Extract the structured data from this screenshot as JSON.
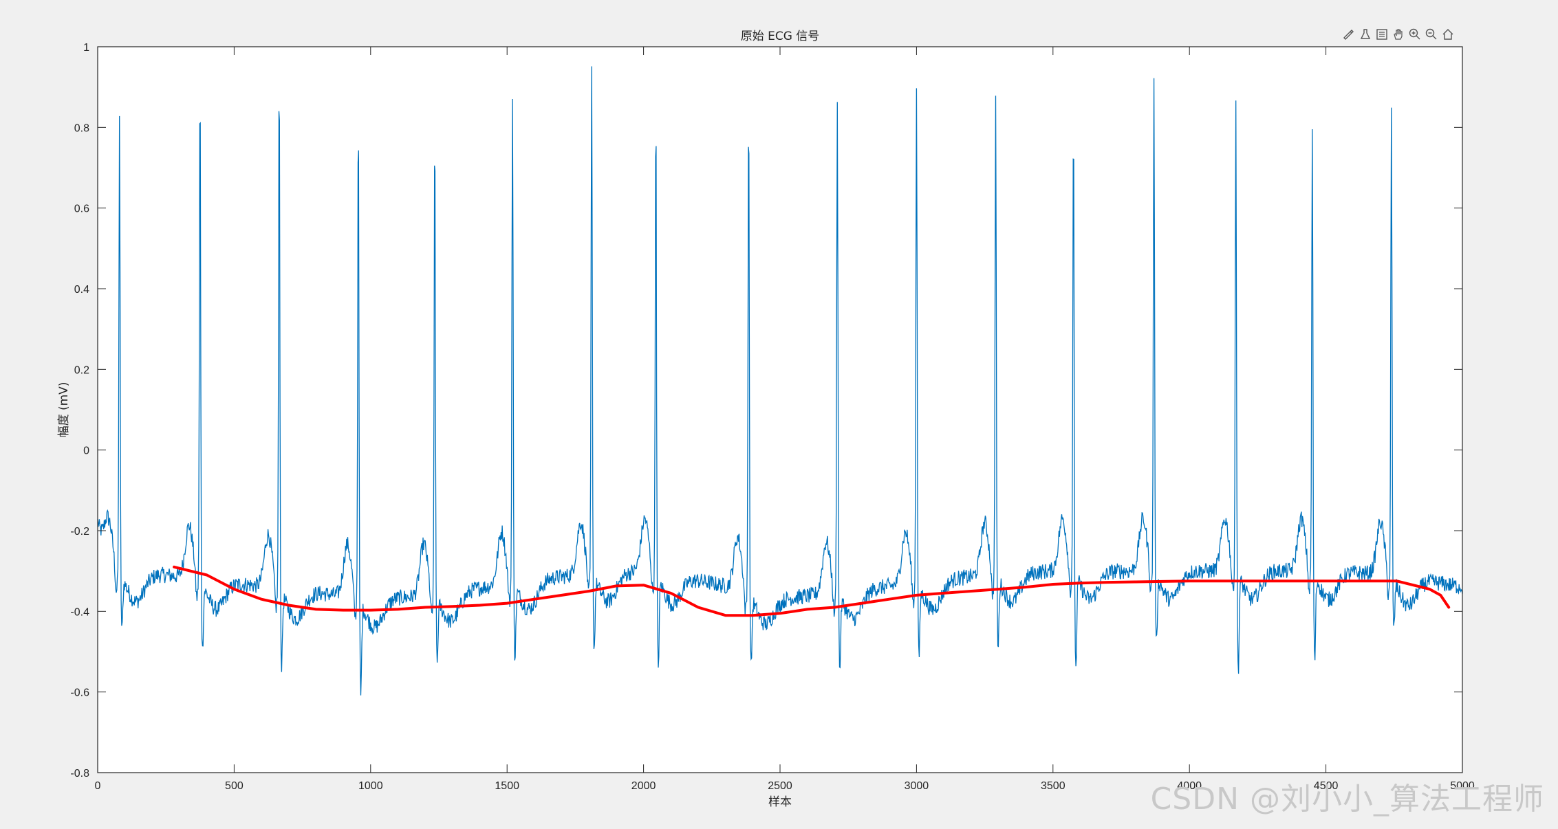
{
  "chart_data": {
    "type": "line",
    "title": "原始 ECG 信号",
    "xlabel": "样本",
    "ylabel": "幅度 (mV)",
    "xlim": [
      0,
      5000
    ],
    "ylim": [
      -0.8,
      1
    ],
    "xticks": [
      0,
      500,
      1000,
      1500,
      2000,
      2500,
      3000,
      3500,
      4000,
      4500,
      5000
    ],
    "yticks": [
      -0.8,
      -0.6,
      -0.4,
      -0.2,
      0,
      0.2,
      0.4,
      0.6,
      0.8,
      1
    ],
    "grid": false,
    "series": [
      {
        "color": "#0072bd",
        "baseline_x": [
          0,
          250,
          500,
          750,
          1000,
          1250,
          1500,
          1750,
          2000,
          2250,
          2500,
          2750,
          3000,
          3250,
          3500,
          3750,
          4000,
          4250,
          4500,
          4750,
          5000
        ],
        "baseline_y": [
          -0.3,
          -0.31,
          -0.33,
          -0.35,
          -0.37,
          -0.36,
          -0.33,
          -0.31,
          -0.3,
          -0.33,
          -0.37,
          -0.35,
          -0.33,
          -0.31,
          -0.3,
          -0.3,
          -0.3,
          -0.3,
          -0.3,
          -0.31,
          -0.34
        ],
        "r_peaks_x": [
          80,
          375,
          665,
          955,
          1235,
          1520,
          1810,
          2045,
          2385,
          2710,
          3000,
          3290,
          3575,
          3870,
          4170,
          4450,
          4740
        ],
        "r_peaks_y": [
          0.84,
          0.94,
          0.96,
          0.86,
          0.82,
          0.88,
          0.95,
          0.87,
          0.88,
          0.89,
          0.92,
          0.87,
          0.83,
          0.93,
          0.89,
          0.8,
          0.85
        ],
        "s_troughs_y": [
          -0.48,
          -0.53,
          -0.57,
          -0.64,
          -0.56,
          -0.55,
          -0.53,
          -0.57,
          -0.57,
          -0.58,
          -0.55,
          -0.53,
          -0.58,
          -0.52,
          -0.58,
          -0.56,
          -0.48
        ]
      },
      {
        "color": "#ff0000",
        "x": [
          280,
          400,
          500,
          600,
          700,
          800,
          900,
          1000,
          1100,
          1200,
          1300,
          1400,
          1500,
          1600,
          1700,
          1800,
          1900,
          2000,
          2100,
          2200,
          2300,
          2400,
          2500,
          2600,
          2700,
          2800,
          2900,
          3000,
          3100,
          3200,
          3300,
          3400,
          3500,
          3600,
          3700,
          3800,
          3900,
          4000,
          4100,
          4200,
          4300,
          4400,
          4500,
          4600,
          4700,
          4760,
          4820,
          4880,
          4920,
          4950
        ],
        "y": [
          -0.29,
          -0.31,
          -0.345,
          -0.37,
          -0.385,
          -0.395,
          -0.397,
          -0.397,
          -0.395,
          -0.39,
          -0.388,
          -0.385,
          -0.38,
          -0.37,
          -0.36,
          -0.35,
          -0.337,
          -0.335,
          -0.355,
          -0.39,
          -0.41,
          -0.41,
          -0.405,
          -0.395,
          -0.39,
          -0.38,
          -0.37,
          -0.36,
          -0.355,
          -0.35,
          -0.345,
          -0.34,
          -0.333,
          -0.33,
          -0.328,
          -0.327,
          -0.326,
          -0.325,
          -0.325,
          -0.325,
          -0.325,
          -0.325,
          -0.325,
          -0.325,
          -0.325,
          -0.325,
          -0.335,
          -0.345,
          -0.36,
          -0.39
        ]
      }
    ]
  },
  "toolbar": [
    "brush-icon",
    "data-tip-icon",
    "legend-icon",
    "pan-icon",
    "zoom-in-icon",
    "zoom-out-icon",
    "home-icon"
  ],
  "watermark": "CSDN @刘小小_算法工程师"
}
